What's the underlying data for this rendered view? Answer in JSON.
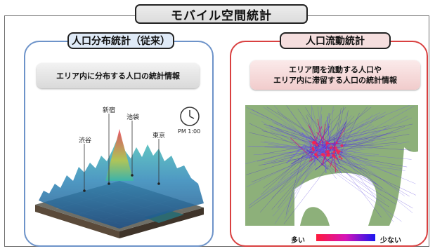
{
  "title": "モバイル空間統計",
  "left_panel": {
    "heading": "人口分布統計（従来）",
    "description": "エリア内に分布する人口の統計情報",
    "labels": [
      "渋谷",
      "新宿",
      "池袋",
      "東京"
    ],
    "clock_time": "PM 1:00"
  },
  "right_panel": {
    "heading": "人口流動統計",
    "description_line1": "エリア間を流動する人口や",
    "description_line2": "エリア内に滞留する人口の統計情報",
    "legend_high": "多い",
    "legend_low": "少ない"
  },
  "colors": {
    "left_border": "#6d93c9",
    "right_border": "#d94040",
    "legend_start": "#ff1a3c",
    "legend_end": "#1a16f0"
  }
}
